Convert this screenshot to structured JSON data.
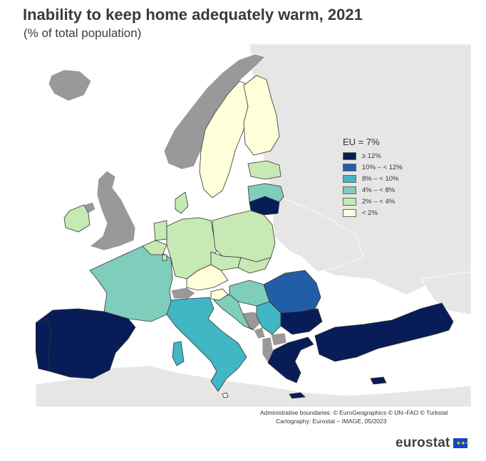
{
  "header": {
    "title": "Inability to keep home adequately warm, 2021",
    "subtitle": "(% of total population)"
  },
  "legend": {
    "title": "EU = 7%",
    "classes": [
      {
        "label": "≥ 12%",
        "color": "#081d58"
      },
      {
        "label": "10% – < 12%",
        "color": "#225ea8"
      },
      {
        "label": "8% – < 10%",
        "color": "#41b6c4"
      },
      {
        "label": "4% – < 8%",
        "color": "#7fcdbb"
      },
      {
        "label": "2% – < 4%",
        "color": "#c7e9b4"
      },
      {
        "label": "< 2%",
        "color": "#ffffd9"
      }
    ]
  },
  "colors": {
    "no_data": "#999999",
    "non_eu": "#e6e6e6",
    "sea": "#ffffff",
    "border": "#333333"
  },
  "footer": {
    "credits_line1": "Administrative boundaries: © EuroGeographics © UN–FAO © Turkstat",
    "credits_line2": "Cartography: Eurostat – IMAGE, 05/2023",
    "brand": "eurostat"
  }
}
